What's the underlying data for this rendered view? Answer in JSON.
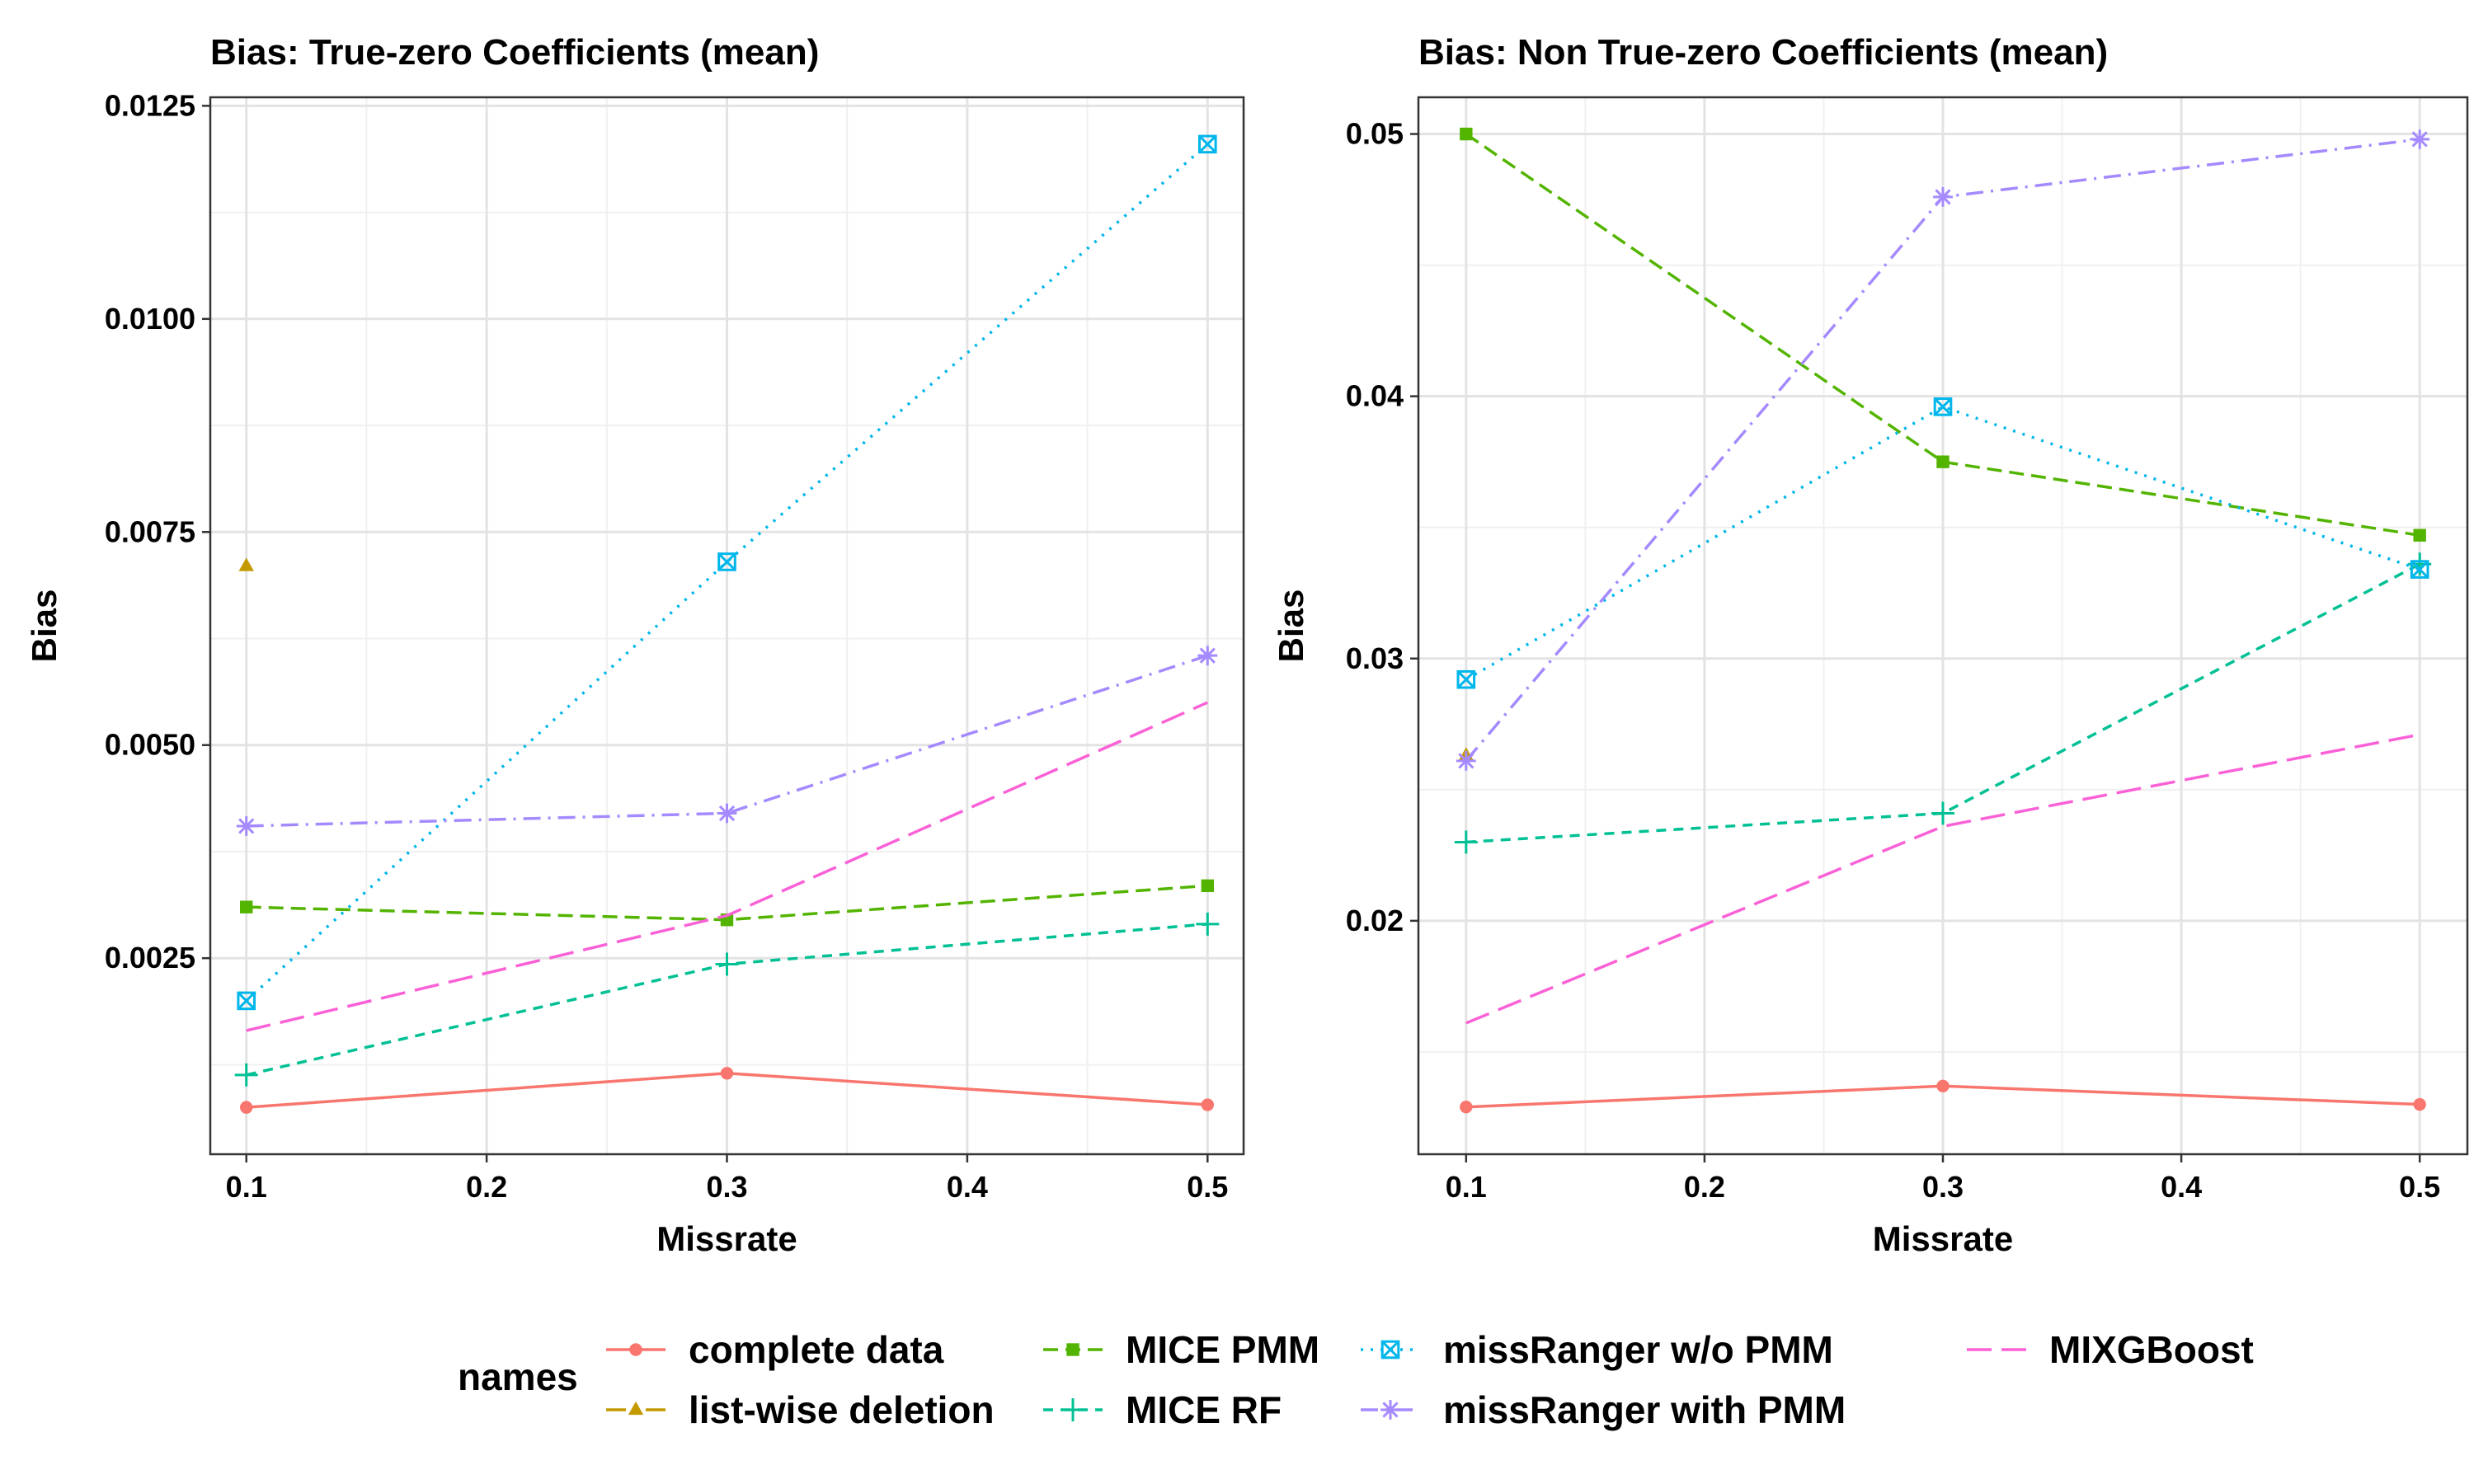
{
  "colors": {
    "complete data": "#F8766D",
    "list-wise deletion": "#C49A00",
    "MICE PMM": "#53B400",
    "MICE RF": "#00C094",
    "missRanger w/o PMM": "#00B6EB",
    "missRanger with PMM": "#A58AFF",
    "MIXGBoost": "#FB61D7"
  },
  "legend": {
    "title": "names",
    "entries": [
      "complete data",
      "list-wise deletion",
      "MICE PMM",
      "MICE RF",
      "missRanger w/o PMM",
      "missRanger with PMM",
      "MIXGBoost"
    ]
  },
  "chart_data": [
    {
      "type": "line",
      "title": "Bias: True-zero Coefficients (mean)",
      "xlabel": "Missrate",
      "ylabel": "Bias",
      "xlim": [
        0.085,
        0.515
      ],
      "ylim": [
        0.0002,
        0.0126
      ],
      "xticks": [
        "0.1",
        "0.2",
        "0.3",
        "0.4",
        "0.5"
      ],
      "yticks": [
        "0.0025",
        "0.0050",
        "0.0075",
        "0.0100",
        "0.0125"
      ],
      "x": [
        0.1,
        0.3,
        0.5
      ],
      "series": [
        {
          "name": "complete data",
          "values": [
            0.00075,
            0.00115,
            0.00078
          ]
        },
        {
          "name": "list-wise deletion",
          "values": [
            0.0071,
            null,
            null
          ]
        },
        {
          "name": "MICE PMM",
          "values": [
            0.0031,
            0.00295,
            0.00335
          ]
        },
        {
          "name": "MICE RF",
          "values": [
            0.00113,
            0.00243,
            0.0029
          ]
        },
        {
          "name": "missRanger w/o PMM",
          "values": [
            0.002,
            0.00715,
            0.01205
          ]
        },
        {
          "name": "missRanger with PMM",
          "values": [
            0.00405,
            0.0042,
            0.00605
          ]
        },
        {
          "name": "MIXGBoost",
          "values": [
            0.00165,
            0.003,
            0.0055
          ]
        }
      ]
    },
    {
      "type": "line",
      "title": "Bias: Non True-zero Coefficients (mean)",
      "xlabel": "Missrate",
      "ylabel": "Bias",
      "xlim": [
        0.08,
        0.52
      ],
      "ylim": [
        0.0111,
        0.0514
      ],
      "xticks": [
        "0.1",
        "0.2",
        "0.3",
        "0.4",
        "0.5"
      ],
      "yticks": [
        "0.02",
        "0.03",
        "0.04",
        "0.05"
      ],
      "x": [
        0.1,
        0.3,
        0.5
      ],
      "series": [
        {
          "name": "complete data",
          "values": [
            0.0129,
            0.0137,
            0.013
          ]
        },
        {
          "name": "list-wise deletion",
          "values": [
            0.0263,
            null,
            null
          ]
        },
        {
          "name": "MICE PMM",
          "values": [
            0.05,
            0.0375,
            0.0347
          ]
        },
        {
          "name": "MICE RF",
          "values": [
            0.023,
            0.0241,
            0.0336
          ]
        },
        {
          "name": "missRanger w/o PMM",
          "values": [
            0.0292,
            0.0396,
            0.0334
          ]
        },
        {
          "name": "missRanger with PMM",
          "values": [
            0.0261,
            0.0476,
            0.0498
          ]
        },
        {
          "name": "MIXGBoost",
          "values": [
            0.0161,
            0.0236,
            0.0271
          ]
        }
      ]
    }
  ]
}
